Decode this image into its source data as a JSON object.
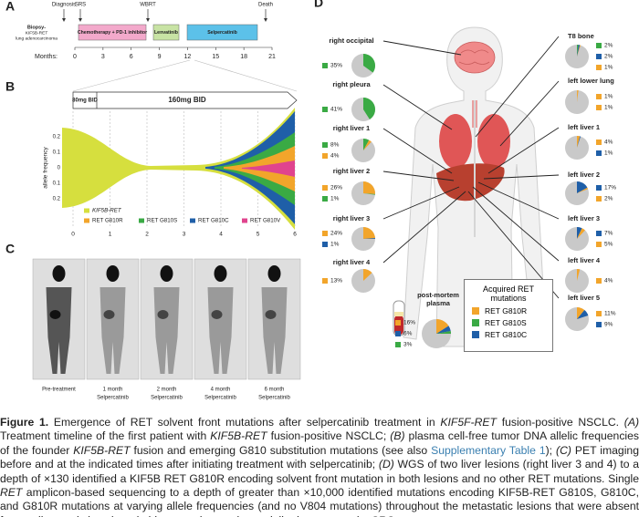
{
  "panel_a": {
    "letter": "A",
    "events": [
      "Diagnosis",
      "SRS",
      "WBRT",
      "Death"
    ],
    "biopsy": [
      "Biopsy-",
      "KIF5B-RET",
      "lung adenocarcinoma"
    ],
    "treatments": [
      {
        "label": "Chemotherapy + PD-1 inhibitor",
        "color": "#f3a9cb"
      },
      {
        "label": "Lenvatinib",
        "color": "#c8e3a4"
      },
      {
        "label": "Selpercatinib",
        "color": "#5cc1e9"
      }
    ],
    "months_label": "Months:",
    "months": [
      "0",
      "3",
      "6",
      "9",
      "12",
      "15",
      "18",
      "21"
    ]
  },
  "panel_b": {
    "letter": "B",
    "doses": [
      "80mg BID",
      "160mg BID"
    ],
    "y_label": "allele frequency",
    "yticks": [
      "0.2",
      "0.1",
      "0",
      "0.1",
      "0.2"
    ],
    "xticks": [
      "0",
      "1",
      "2",
      "3",
      "4",
      "5",
      "6"
    ],
    "legend": [
      {
        "label": "KIF5B-RET",
        "color": "#d6df3e"
      },
      {
        "label": "RET G810R",
        "color": "#f2a52b"
      },
      {
        "label": "RET G810S",
        "color": "#3aaa44"
      },
      {
        "label": "RET G810C",
        "color": "#1f5fa8"
      },
      {
        "label": "RET G810V",
        "color": "#e0448e"
      }
    ]
  },
  "panel_c": {
    "letter": "C",
    "labels": [
      [
        "Pre-treatment"
      ],
      [
        "1 month",
        "Selpercatinib"
      ],
      [
        "2 month",
        "Selpercatinib"
      ],
      [
        "4 month",
        "Selpercatinib"
      ],
      [
        "6 month",
        "Selpercatinib"
      ]
    ]
  },
  "panel_d": {
    "letter": "D",
    "lesions": [
      {
        "name": "right occipital",
        "values": [
          {
            "value": 35,
            "label": "35%",
            "color": "#3aaa44"
          }
        ]
      },
      {
        "name": "right pleura",
        "values": [
          {
            "value": 41,
            "label": "41%",
            "color": "#3aaa44"
          }
        ]
      },
      {
        "name": "right liver 1",
        "values": [
          {
            "value": 8,
            "label": "8%",
            "color": "#3aaa44"
          },
          {
            "value": 4,
            "label": "4%",
            "color": "#f2a52b"
          }
        ]
      },
      {
        "name": "right liver 2",
        "values": [
          {
            "value": 26,
            "label": "26%",
            "color": "#f2a52b"
          },
          {
            "value": 1,
            "label": "1%",
            "color": "#3aaa44"
          }
        ]
      },
      {
        "name": "right liver 3",
        "values": [
          {
            "value": 24,
            "label": "24%",
            "color": "#f2a52b"
          },
          {
            "value": 1,
            "label": "1%",
            "color": "#1f5fa8"
          }
        ]
      },
      {
        "name": "right liver 4",
        "values": [
          {
            "value": 13,
            "label": "13%",
            "color": "#f2a52b"
          }
        ]
      },
      {
        "name": "post-mortem plasma",
        "values": [
          {
            "value": 16,
            "label": "16%",
            "color": "#f2a52b"
          },
          {
            "value": 6,
            "label": "6%",
            "color": "#1f5fa8"
          },
          {
            "value": 3,
            "label": "3%",
            "color": "#3aaa44"
          }
        ]
      },
      {
        "name": "T8 bone",
        "values": [
          {
            "value": 2,
            "label": "2%",
            "color": "#3aaa44"
          },
          {
            "value": 2,
            "label": "2%",
            "color": "#1f5fa8"
          },
          {
            "value": 1,
            "label": "1%",
            "color": "#f2a52b"
          }
        ]
      },
      {
        "name": "left lower lung",
        "values": [
          {
            "value": 1,
            "label": "1%",
            "color": "#f2a52b"
          },
          {
            "value": 1,
            "label": "1%",
            "color": "#f2a52b"
          }
        ]
      },
      {
        "name": "left liver 1",
        "values": [
          {
            "value": 4,
            "label": "4%",
            "color": "#f2a52b"
          },
          {
            "value": 1,
            "label": "1%",
            "color": "#1f5fa8"
          }
        ]
      },
      {
        "name": "left liver 2",
        "values": [
          {
            "value": 17,
            "label": "17%",
            "color": "#1f5fa8"
          },
          {
            "value": 2,
            "label": "2%",
            "color": "#f2a52b"
          }
        ]
      },
      {
        "name": "left liver 3",
        "values": [
          {
            "value": 7,
            "label": "7%",
            "color": "#1f5fa8"
          },
          {
            "value": 5,
            "label": "5%",
            "color": "#f2a52b"
          }
        ]
      },
      {
        "name": "left liver 4",
        "values": [
          {
            "value": 4,
            "label": "4%",
            "color": "#f2a52b"
          }
        ]
      },
      {
        "name": "left liver 5",
        "values": [
          {
            "value": 11,
            "label": "11%",
            "color": "#f2a52b"
          },
          {
            "value": 9,
            "label": "9%",
            "color": "#1f5fa8"
          }
        ]
      }
    ],
    "legend": {
      "title": "Acquired RET mutations",
      "items": [
        {
          "label": "RET G810R",
          "color": "#f2a52b"
        },
        {
          "label": "RET G810S",
          "color": "#3aaa44"
        },
        {
          "label": "RET G810C",
          "color": "#1f5fa8"
        }
      ]
    }
  },
  "caption": [
    {
      "text": "Figure 1.",
      "style": "bold"
    },
    {
      "text": " Emergence of RET solvent front mutations after selpercatinib treatment in ",
      "style": "plain"
    },
    {
      "text": "KIF5F-RET",
      "style": "italic"
    },
    {
      "text": " fusion-positive NSCLC. ",
      "style": "plain"
    },
    {
      "text": "(A)",
      "style": "italic"
    },
    {
      "text": " Treatment timeline of the first patient with ",
      "style": "plain"
    },
    {
      "text": "KIF5B-RET",
      "style": "italic"
    },
    {
      "text": " fusion-positive NSCLC; ",
      "style": "plain"
    },
    {
      "text": "(B)",
      "style": "italic"
    },
    {
      "text": " plasma cell-free tumor DNA allelic frequencies of the founder ",
      "style": "plain"
    },
    {
      "text": "KIF5B-RET",
      "style": "italic"
    },
    {
      "text": " fusion and emerging G810 substitution mutations (see also ",
      "style": "plain"
    },
    {
      "text": "Supplementary Table 1",
      "style": "link"
    },
    {
      "text": "); ",
      "style": "plain"
    },
    {
      "text": "(C)",
      "style": "italic"
    },
    {
      "text": " PET imaging before and at the indicated times after initiating treatment with selpercatinib; ",
      "style": "plain"
    },
    {
      "text": "(D)",
      "style": "italic"
    },
    {
      "text": " WGS of two liver lesions (right liver 3 and 4) to a depth of ×130 identified a KIF5B RET G810R encoding solvent front mutation in both lesions and no other RET mutations. Single ",
      "style": "plain"
    },
    {
      "text": "RET",
      "style": "italic"
    },
    {
      "text": " amplicon-based sequencing to a depth of greater than ×10,000 identified mutations encoding KIF5B-RET G810S, G810C, and G810R mutations at varying allele frequencies (and no V804 mutations) throughout the metastatic lesions that were absent from a diagnostic lymph node biopsy and pre-selpercatinib plasma sample. SRS,",
      "style": "plain"
    }
  ]
}
